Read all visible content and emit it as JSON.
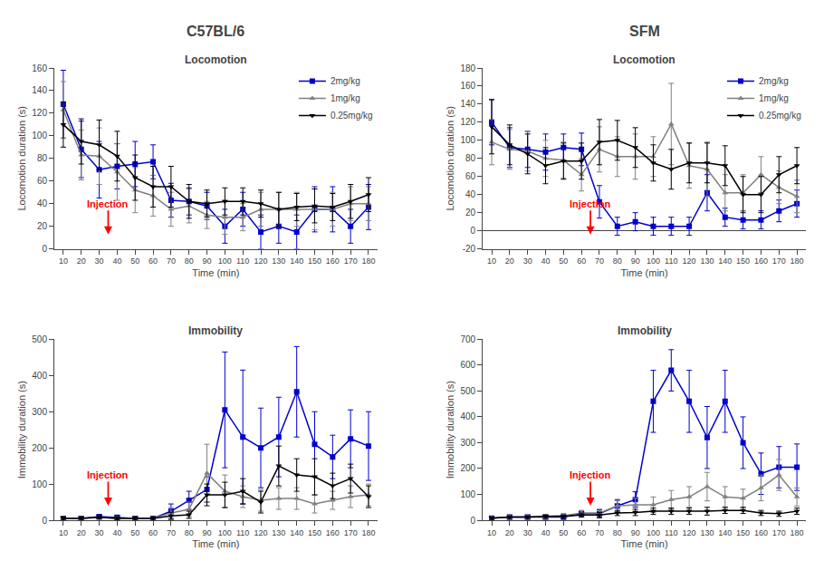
{
  "annotations": [
    "C57BL/6",
    "SFM"
  ],
  "chart_data": [
    {
      "type": "line",
      "title": "Locomotion",
      "xlabel": "Time (min)",
      "ylabel": "Locomotion duration (s)",
      "x": [
        10,
        20,
        30,
        40,
        50,
        60,
        70,
        80,
        90,
        100,
        110,
        120,
        130,
        140,
        150,
        160,
        170,
        180
      ],
      "xlim": [
        5,
        185
      ],
      "xticks": [
        10,
        20,
        30,
        40,
        50,
        60,
        70,
        80,
        90,
        100,
        110,
        120,
        130,
        140,
        150,
        160,
        170,
        180
      ],
      "ylim": [
        0,
        160
      ],
      "yticks": [
        0,
        20,
        40,
        60,
        80,
        100,
        120,
        140,
        160
      ],
      "grid": false,
      "legend": "upper right",
      "annotations": [
        {
          "text": "Injection",
          "x": 35,
          "color": "#ff0000"
        }
      ],
      "series": [
        {
          "name": "2mg/kg",
          "color": "#0000cc",
          "marker": "square",
          "values": [
            128,
            88,
            70,
            73,
            75,
            77,
            43,
            42,
            38,
            20,
            35,
            15,
            20,
            15,
            35,
            35,
            20,
            37
          ],
          "errors": [
            30,
            25,
            25,
            20,
            20,
            15,
            15,
            12,
            12,
            15,
            15,
            15,
            15,
            15,
            20,
            20,
            15,
            20
          ]
        },
        {
          "name": "1mg/kg",
          "color": "#808080",
          "marker": "triangle-up",
          "values": [
            123,
            83,
            82,
            68,
            52,
            47,
            35,
            38,
            30,
            28,
            28,
            35,
            35,
            35,
            35,
            35,
            40,
            40
          ],
          "errors": [
            25,
            22,
            25,
            25,
            20,
            18,
            15,
            15,
            12,
            15,
            12,
            15,
            15,
            15,
            18,
            15,
            15,
            15
          ]
        },
        {
          "name": "0.25mg/kg",
          "color": "#000000",
          "marker": "triangle-down",
          "values": [
            110,
            95,
            92,
            82,
            63,
            55,
            55,
            42,
            40,
            42,
            42,
            40,
            35,
            37,
            38,
            37,
            42,
            48
          ],
          "errors": [
            20,
            20,
            22,
            22,
            20,
            18,
            18,
            15,
            12,
            12,
            12,
            12,
            15,
            12,
            15,
            12,
            15,
            15
          ]
        }
      ]
    },
    {
      "type": "line",
      "title": "Locomotion",
      "xlabel": "Time (min)",
      "ylabel": "Locomotion duration (s)",
      "x": [
        10,
        20,
        30,
        40,
        50,
        60,
        70,
        80,
        90,
        100,
        110,
        120,
        130,
        140,
        150,
        160,
        170,
        180
      ],
      "xlim": [
        5,
        185
      ],
      "xticks": [
        10,
        20,
        30,
        40,
        50,
        60,
        70,
        80,
        90,
        100,
        110,
        120,
        130,
        140,
        150,
        160,
        170,
        180
      ],
      "ylim": [
        -20,
        180
      ],
      "yticks": [
        -20,
        0,
        20,
        40,
        60,
        80,
        100,
        120,
        140,
        160,
        180
      ],
      "grid": false,
      "legend": "upper right",
      "annotations": [
        {
          "text": "Injection",
          "x": 65,
          "color": "#ff0000"
        }
      ],
      "series": [
        {
          "name": "2mg/kg",
          "color": "#0000cc",
          "marker": "square",
          "values": [
            120,
            92,
            90,
            87,
            92,
            90,
            32,
            5,
            10,
            5,
            5,
            5,
            42,
            15,
            12,
            12,
            22,
            30
          ],
          "errors": [
            25,
            22,
            20,
            20,
            15,
            18,
            18,
            10,
            10,
            10,
            10,
            10,
            20,
            10,
            10,
            10,
            12,
            15
          ]
        },
        {
          "name": "1mg/kg",
          "color": "#808080",
          "marker": "triangle-up",
          "values": [
            98,
            90,
            88,
            80,
            78,
            62,
            90,
            82,
            82,
            82,
            118,
            72,
            68,
            42,
            42,
            62,
            48,
            38
          ],
          "errors": [
            25,
            22,
            22,
            20,
            20,
            18,
            25,
            22,
            25,
            22,
            45,
            25,
            30,
            20,
            20,
            20,
            18,
            18
          ]
        },
        {
          "name": "0.25mg/kg",
          "color": "#000000",
          "marker": "triangle-down",
          "values": [
            115,
            95,
            85,
            72,
            77,
            77,
            98,
            100,
            92,
            75,
            68,
            75,
            75,
            72,
            40,
            40,
            62,
            72
          ],
          "errors": [
            30,
            22,
            22,
            20,
            20,
            20,
            25,
            22,
            22,
            20,
            22,
            22,
            22,
            22,
            20,
            20,
            20,
            20
          ]
        }
      ]
    },
    {
      "type": "line",
      "title": "Immobility",
      "xlabel": "Time (min)",
      "ylabel": "Immobility duration (s)",
      "x": [
        10,
        20,
        30,
        40,
        50,
        60,
        70,
        80,
        90,
        100,
        110,
        120,
        130,
        140,
        150,
        160,
        170,
        180
      ],
      "xlim": [
        5,
        185
      ],
      "xticks": [
        10,
        20,
        30,
        40,
        50,
        60,
        70,
        80,
        90,
        100,
        110,
        120,
        130,
        140,
        150,
        160,
        170,
        180
      ],
      "ylim": [
        0,
        500
      ],
      "yticks": [
        0,
        100,
        200,
        300,
        400,
        500
      ],
      "grid": false,
      "annotations": [
        {
          "text": "Injection",
          "x": 35,
          "color": "#ff0000"
        }
      ],
      "series": [
        {
          "name": "2mg/kg",
          "color": "#0000cc",
          "marker": "square",
          "values": [
            5,
            5,
            10,
            8,
            5,
            5,
            25,
            55,
            85,
            305,
            230,
            200,
            230,
            355,
            210,
            175,
            225,
            205
          ],
          "errors": [
            5,
            5,
            5,
            5,
            5,
            5,
            20,
            25,
            35,
            160,
            185,
            110,
            110,
            125,
            90,
            60,
            80,
            95
          ]
        },
        {
          "name": "1mg/kg",
          "color": "#808080",
          "marker": "triangle-up",
          "values": [
            5,
            5,
            8,
            5,
            5,
            5,
            20,
            30,
            130,
            80,
            65,
            55,
            60,
            60,
            45,
            55,
            65,
            70
          ],
          "errors": [
            5,
            5,
            5,
            5,
            5,
            5,
            15,
            20,
            80,
            45,
            30,
            30,
            30,
            30,
            25,
            25,
            30,
            30
          ]
        },
        {
          "name": "0.25mg/kg",
          "color": "#000000",
          "marker": "triangle-down",
          "values": [
            5,
            5,
            8,
            5,
            5,
            5,
            12,
            15,
            70,
            70,
            80,
            50,
            150,
            125,
            120,
            95,
            115,
            65
          ],
          "errors": [
            5,
            5,
            5,
            5,
            5,
            5,
            10,
            10,
            30,
            35,
            35,
            30,
            55,
            45,
            50,
            35,
            40,
            30
          ]
        }
      ]
    },
    {
      "type": "line",
      "title": "Immobility",
      "xlabel": "Time (min)",
      "ylabel": "Immobility duration (s)",
      "x": [
        10,
        20,
        30,
        40,
        50,
        60,
        70,
        80,
        90,
        100,
        110,
        120,
        130,
        140,
        150,
        160,
        170,
        180
      ],
      "xlim": [
        5,
        185
      ],
      "xticks": [
        10,
        20,
        30,
        40,
        50,
        60,
        70,
        80,
        90,
        100,
        110,
        120,
        130,
        140,
        150,
        160,
        170,
        180
      ],
      "ylim": [
        0,
        700
      ],
      "yticks": [
        0,
        100,
        200,
        300,
        400,
        500,
        600,
        700
      ],
      "grid": false,
      "annotations": [
        {
          "text": "Injection",
          "x": 65,
          "color": "#ff0000"
        }
      ],
      "series": [
        {
          "name": "2mg/kg",
          "color": "#0000cc",
          "marker": "square",
          "values": [
            8,
            12,
            12,
            12,
            12,
            25,
            25,
            55,
            80,
            460,
            580,
            460,
            320,
            460,
            300,
            180,
            205,
            205
          ],
          "errors": [
            5,
            8,
            8,
            8,
            8,
            10,
            15,
            25,
            30,
            120,
            80,
            120,
            120,
            120,
            100,
            80,
            80,
            90
          ]
        },
        {
          "name": "1mg/kg",
          "color": "#808080",
          "marker": "triangle-up",
          "values": [
            8,
            12,
            12,
            15,
            18,
            28,
            28,
            55,
            60,
            60,
            80,
            90,
            130,
            90,
            85,
            125,
            175,
            90
          ],
          "errors": [
            5,
            8,
            8,
            8,
            8,
            10,
            15,
            20,
            25,
            30,
            35,
            40,
            55,
            40,
            35,
            50,
            60,
            35
          ]
        },
        {
          "name": "0.25mg/kg",
          "color": "#000000",
          "marker": "triangle-down",
          "values": [
            8,
            12,
            12,
            15,
            15,
            20,
            20,
            28,
            30,
            35,
            35,
            35,
            35,
            38,
            38,
            28,
            25,
            35
          ],
          "errors": [
            5,
            5,
            5,
            5,
            5,
            8,
            10,
            10,
            12,
            12,
            12,
            12,
            15,
            12,
            12,
            10,
            10,
            12
          ]
        }
      ]
    }
  ]
}
